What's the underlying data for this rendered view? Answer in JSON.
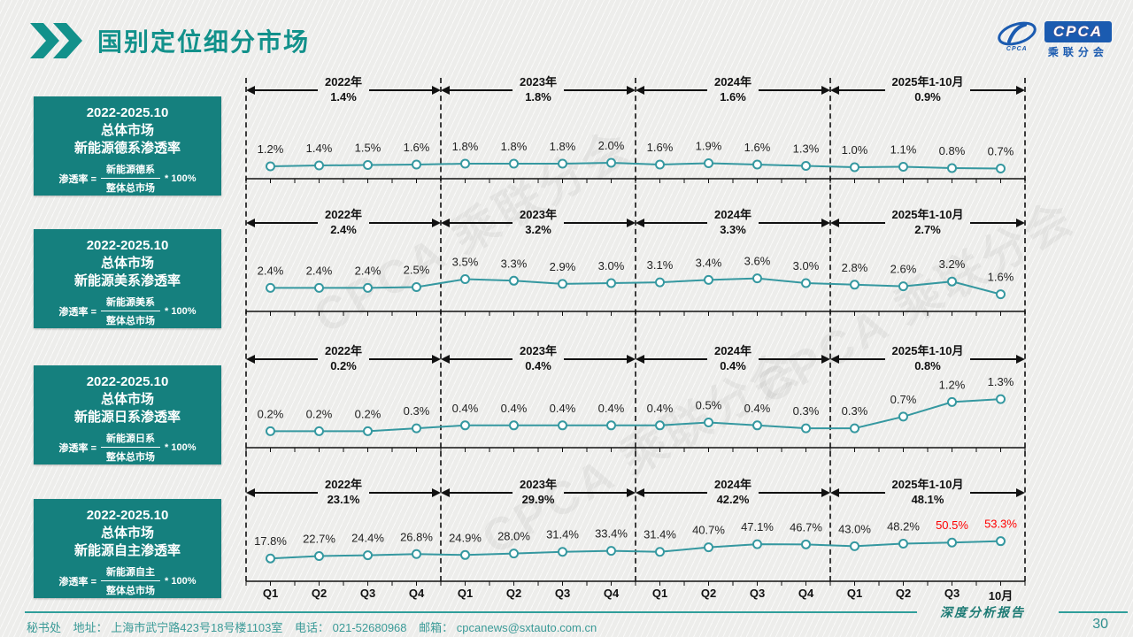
{
  "title": "国别定位细分市场",
  "logo": {
    "icon": "swoosh-icon",
    "icon_caption": "CPCA",
    "box_text": "CPCA",
    "subtitle": "乘联分会"
  },
  "watermark_text": "CPCA 乘联分会",
  "colors": {
    "teal_title": "#12918b",
    "card_bg": "#15807e",
    "line": "#3598a0",
    "red": "#ff0000",
    "footer_teal": "#2f9e9a",
    "logo_blue": "#1b5bb0"
  },
  "x_labels": [
    "Q1",
    "Q2",
    "Q3",
    "Q4",
    "Q1",
    "Q2",
    "Q3",
    "Q4",
    "Q1",
    "Q2",
    "Q3",
    "Q4",
    "Q1",
    "Q2",
    "Q3",
    "10月"
  ],
  "chart_data": [
    {
      "type": "line",
      "title": "总体市场新能源德系渗透率",
      "card": {
        "period": "2022-2025.10",
        "market": "总体市场",
        "metric": "新能源德系渗透率",
        "formula_lhs": "渗透率 =",
        "numerator": "新能源德系",
        "denominator": "整体总市场",
        "suffix": "* 100%"
      },
      "sections": [
        {
          "year": "2022年",
          "avg": "1.4%"
        },
        {
          "year": "2023年",
          "avg": "1.8%"
        },
        {
          "year": "2024年",
          "avg": "1.6%"
        },
        {
          "year": "2025年1-10月",
          "avg": "0.9%"
        }
      ],
      "values": [
        1.2,
        1.4,
        1.5,
        1.6,
        1.8,
        1.8,
        1.8,
        2.0,
        1.6,
        1.9,
        1.6,
        1.3,
        1.0,
        1.1,
        0.8,
        0.7
      ],
      "unit": "%",
      "ylim": [
        0,
        2.5
      ],
      "red_indices": []
    },
    {
      "type": "line",
      "title": "总体市场新能源美系渗透率",
      "card": {
        "period": "2022-2025.10",
        "market": "总体市场",
        "metric": "新能源美系渗透率",
        "formula_lhs": "渗透率 =",
        "numerator": "新能源美系",
        "denominator": "整体总市场",
        "suffix": "* 100%"
      },
      "sections": [
        {
          "year": "2022年",
          "avg": "2.4%"
        },
        {
          "year": "2023年",
          "avg": "3.2%"
        },
        {
          "year": "2024年",
          "avg": "3.3%"
        },
        {
          "year": "2025年1-10月",
          "avg": "2.7%"
        }
      ],
      "values": [
        2.4,
        2.4,
        2.4,
        2.5,
        3.5,
        3.3,
        2.9,
        3.0,
        3.1,
        3.4,
        3.6,
        3.0,
        2.8,
        2.6,
        3.2,
        1.6
      ],
      "unit": "%",
      "ylim": [
        0,
        4.5
      ],
      "red_indices": []
    },
    {
      "type": "line",
      "title": "总体市场新能源日系渗透率",
      "card": {
        "period": "2022-2025.10",
        "market": "总体市场",
        "metric": "新能源日系渗透率",
        "formula_lhs": "渗透率 =",
        "numerator": "新能源日系",
        "denominator": "整体总市场",
        "suffix": "* 100%"
      },
      "sections": [
        {
          "year": "2022年",
          "avg": "0.2%"
        },
        {
          "year": "2023年",
          "avg": "0.4%"
        },
        {
          "year": "2024年",
          "avg": "0.4%"
        },
        {
          "year": "2025年1-10月",
          "avg": "0.8%"
        }
      ],
      "values": [
        0.2,
        0.2,
        0.2,
        0.3,
        0.4,
        0.4,
        0.4,
        0.4,
        0.4,
        0.5,
        0.4,
        0.3,
        0.3,
        0.7,
        1.2,
        1.3
      ],
      "unit": "%",
      "ylim": [
        0,
        1.6
      ],
      "red_indices": []
    },
    {
      "type": "line",
      "title": "总体市场新能源自主渗透率",
      "card": {
        "period": "2022-2025.10",
        "market": "总体市场",
        "metric": "新能源自主渗透率",
        "formula_lhs": "渗透率 =",
        "numerator": "新能源自主",
        "denominator": "整体总市场",
        "suffix": "* 100%"
      },
      "sections": [
        {
          "year": "2022年",
          "avg": "23.1%"
        },
        {
          "year": "2023年",
          "avg": "29.9%"
        },
        {
          "year": "2024年",
          "avg": "42.2%"
        },
        {
          "year": "2025年1-10月",
          "avg": "48.1%"
        }
      ],
      "values": [
        17.8,
        22.7,
        24.4,
        26.8,
        24.9,
        28.0,
        31.4,
        33.4,
        31.4,
        40.7,
        47.1,
        46.7,
        43.0,
        48.2,
        50.5,
        53.3
      ],
      "unit": "%",
      "ylim": [
        0,
        60
      ],
      "red_indices": [
        14,
        15
      ]
    }
  ],
  "footer": {
    "secretariat": "秘书处",
    "address_label": "地址：",
    "address": "上海市武宁路423号18号楼1103室",
    "phone_label": "电话：",
    "phone": "021-52680968",
    "email_label": "邮箱：",
    "email": "cpcanews@sxtauto.com.cn",
    "report_label": "深度分析报告",
    "page_number": "30"
  }
}
